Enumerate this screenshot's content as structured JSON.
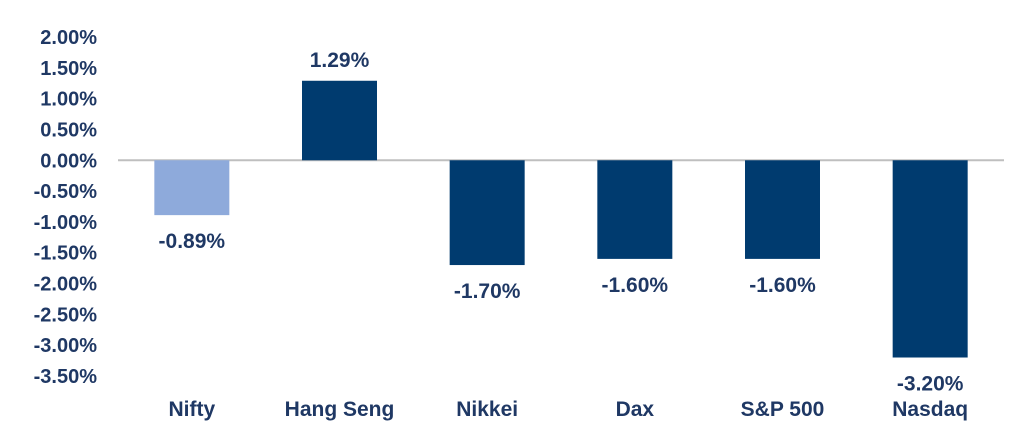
{
  "chart_data": {
    "type": "bar",
    "title": "",
    "xlabel": "",
    "ylabel": "",
    "categories": [
      "Nifty",
      "Hang Seng",
      "Nikkei",
      "Dax",
      "S&P 500",
      "Nasdaq"
    ],
    "values": [
      -0.89,
      1.29,
      -1.7,
      -1.6,
      -1.6,
      -3.2
    ],
    "data_labels": [
      "-0.89%",
      "1.29%",
      "-1.70%",
      "-1.60%",
      "-1.60%",
      "-3.20%"
    ],
    "yticks": [
      "2.00%",
      "1.50%",
      "1.00%",
      "0.50%",
      "0.00%",
      "-0.50%",
      "-1.00%",
      "-1.50%",
      "-2.00%",
      "-2.50%",
      "-3.00%",
      "-3.50%"
    ],
    "ytick_values": [
      2.0,
      1.5,
      1.0,
      0.5,
      0.0,
      -0.5,
      -1.0,
      -1.5,
      -2.0,
      -2.5,
      -3.0,
      -3.5
    ],
    "ylim": [
      -3.5,
      2.0
    ],
    "grid": false,
    "legend": "none",
    "bar_colors": [
      "#8eaadb",
      "#003b6f",
      "#003b6f",
      "#003b6f",
      "#003b6f",
      "#003b6f"
    ],
    "text_color": "#1f3864",
    "axis_color": "#bfbfbf"
  }
}
